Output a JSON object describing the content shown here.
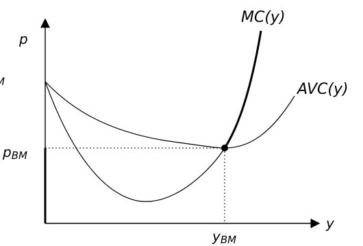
{
  "axes": {
    "y_axis_label": "p",
    "x_axis_label": "y"
  },
  "curves": {
    "mc_label": "MC(y)",
    "avc_label": "AVC(y)"
  },
  "labels": {
    "price_main": "p",
    "price_sub": "BM",
    "quantity_main": "y",
    "quantity_sub": "BM",
    "clipped_left_text": "M"
  }
}
